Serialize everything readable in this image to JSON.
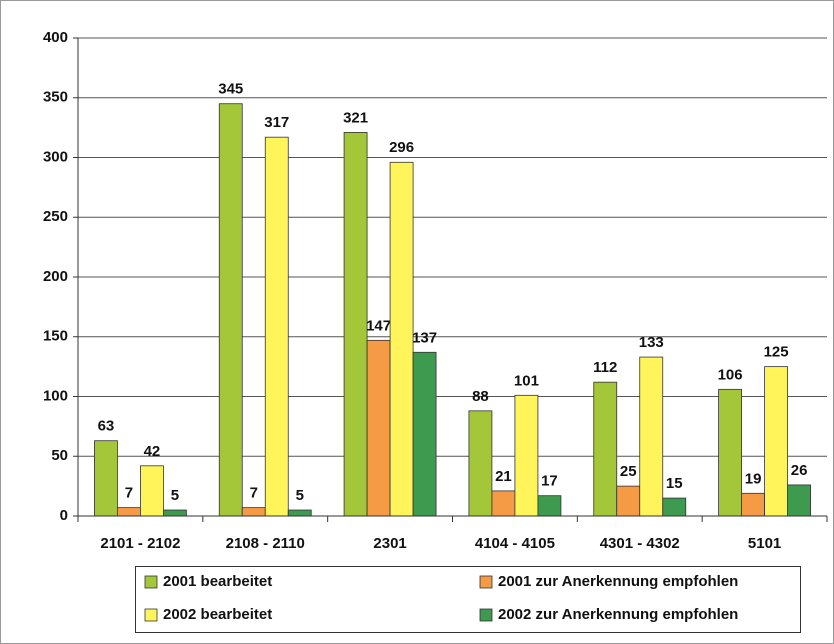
{
  "chart_data": {
    "type": "bar",
    "categories": [
      "2101 - 2102",
      "2108 - 2110",
      "2301",
      "4104 - 4105",
      "4301 - 4302",
      "5101"
    ],
    "series": [
      {
        "name": "2001 bearbeitet",
        "color": "#a3c739",
        "values": [
          63,
          345,
          321,
          88,
          112,
          106
        ]
      },
      {
        "name": "2001 zur Anerkennung empfohlen",
        "color": "#f59a45",
        "values": [
          7,
          7,
          147,
          21,
          25,
          19
        ]
      },
      {
        "name": "2002 bearbeitet",
        "color": "#fff45a",
        "values": [
          42,
          317,
          296,
          101,
          133,
          125
        ]
      },
      {
        "name": "2002 zur Anerkennung empfohlen",
        "color": "#3d9a4e",
        "values": [
          5,
          5,
          137,
          17,
          15,
          26
        ]
      }
    ],
    "ylim": [
      0,
      400
    ],
    "yticks": [
      0,
      50,
      100,
      150,
      200,
      250,
      300,
      350,
      400
    ],
    "grid": true
  }
}
